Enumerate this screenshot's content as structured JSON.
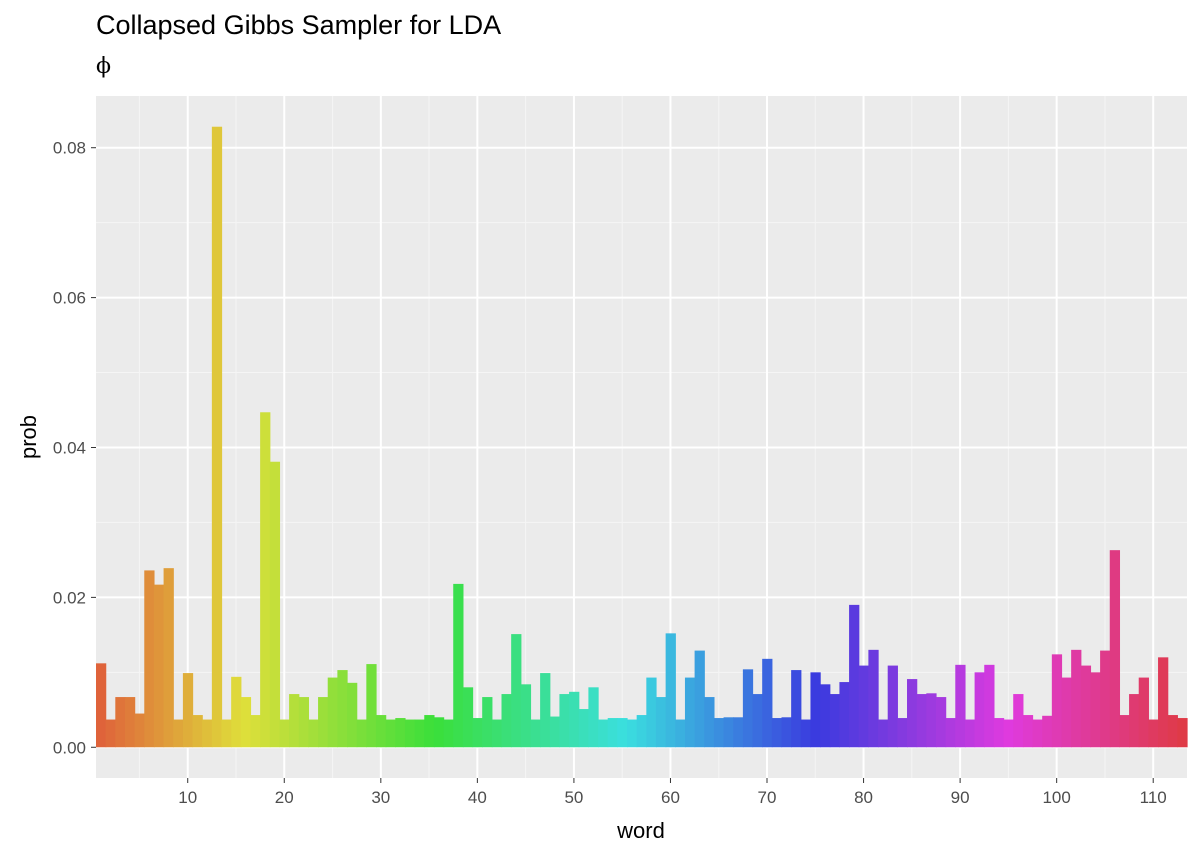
{
  "title": "Collapsed Gibbs Sampler for LDA",
  "subtitle": "ϕ",
  "chart_data": {
    "type": "bar",
    "title": "Collapsed Gibbs Sampler for LDA",
    "subtitle": "ϕ",
    "xlabel": "word",
    "ylabel": "prob",
    "x_ticks": [
      10,
      20,
      30,
      40,
      50,
      60,
      70,
      80,
      90,
      100,
      110
    ],
    "y_ticks": [
      "0.00",
      "0.02",
      "0.04",
      "0.06",
      "0.08"
    ],
    "xlim": [
      0.5,
      113.5
    ],
    "ylim": [
      -0.0041,
      0.0869
    ],
    "grid": true,
    "legend": "none",
    "fill": "hue gradient by word index",
    "x": [
      1,
      2,
      3,
      4,
      5,
      6,
      7,
      8,
      9,
      10,
      11,
      12,
      13,
      14,
      15,
      16,
      17,
      18,
      19,
      20,
      21,
      22,
      23,
      24,
      25,
      26,
      27,
      28,
      29,
      30,
      31,
      32,
      33,
      34,
      35,
      36,
      37,
      38,
      39,
      40,
      41,
      42,
      43,
      44,
      45,
      46,
      47,
      48,
      49,
      50,
      51,
      52,
      53,
      54,
      55,
      56,
      57,
      58,
      59,
      60,
      61,
      62,
      63,
      64,
      65,
      66,
      67,
      68,
      69,
      70,
      71,
      72,
      73,
      74,
      75,
      76,
      77,
      78,
      79,
      80,
      81,
      82,
      83,
      84,
      85,
      86,
      87,
      88,
      89,
      90,
      91,
      92,
      93,
      94,
      95,
      96,
      97,
      98,
      99,
      100,
      101,
      102,
      103,
      104,
      105,
      106,
      107,
      108,
      109,
      110,
      111,
      112,
      113
    ],
    "values": [
      0.0112,
      0.0037,
      0.0067,
      0.0067,
      0.0045,
      0.0236,
      0.0217,
      0.0239,
      0.0037,
      0.0099,
      0.0043,
      0.0037,
      0.0828,
      0.0037,
      0.0094,
      0.0067,
      0.0043,
      0.0447,
      0.0381,
      0.0037,
      0.0071,
      0.0067,
      0.0037,
      0.0067,
      0.0093,
      0.0103,
      0.0086,
      0.0037,
      0.0111,
      0.0043,
      0.0037,
      0.0039,
      0.0037,
      0.0037,
      0.0043,
      0.004,
      0.0037,
      0.0218,
      0.008,
      0.0039,
      0.0067,
      0.0037,
      0.0071,
      0.0151,
      0.0084,
      0.0037,
      0.0099,
      0.0041,
      0.0071,
      0.0074,
      0.0051,
      0.008,
      0.0037,
      0.0039,
      0.0039,
      0.0037,
      0.0043,
      0.0093,
      0.0067,
      0.0152,
      0.0037,
      0.0093,
      0.0129,
      0.0067,
      0.0039,
      0.004,
      0.004,
      0.0104,
      0.0071,
      0.0118,
      0.0039,
      0.004,
      0.0103,
      0.0037,
      0.01,
      0.0084,
      0.0071,
      0.0087,
      0.019,
      0.0109,
      0.013,
      0.0037,
      0.0109,
      0.0039,
      0.0091,
      0.0071,
      0.0072,
      0.0067,
      0.0039,
      0.011,
      0.0037,
      0.01,
      0.011,
      0.0039,
      0.0037,
      0.0071,
      0.0043,
      0.0037,
      0.0042,
      0.0124,
      0.0093,
      0.013,
      0.0109,
      0.01,
      0.0129,
      0.0263,
      0.0043,
      0.0071,
      0.0093,
      0.0037,
      0.012,
      0.0043,
      0.0039
    ]
  }
}
